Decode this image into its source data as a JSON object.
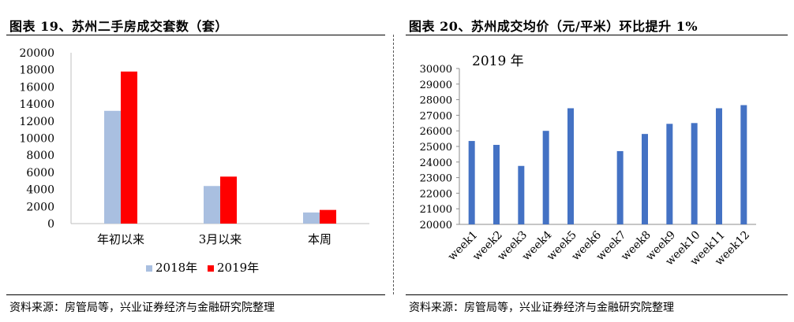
{
  "left_chart": {
    "title": "图表 19、苏州二手房成交套数（套）",
    "source": "资料来源：房管局等，兴业证券经济与金融研究院整理"
  },
  "right_chart": {
    "title": "图表 20、苏州成交均价（元/平米）环比提升 1%",
    "source": "资料来源：房管局等，兴业证券经济与金融研究院整理"
  },
  "chart_data": [
    {
      "type": "bar",
      "title": "图表 19、苏州二手房成交套数（套）",
      "categories": [
        "年初以来",
        "3月以来",
        "本周"
      ],
      "series": [
        {
          "name": "2018年",
          "color": "#a9bfe0",
          "values": [
            13200,
            4400,
            1300
          ]
        },
        {
          "name": "2019年",
          "color": "#ff0000",
          "values": [
            17800,
            5500,
            1600
          ]
        }
      ],
      "yticks": [
        "0",
        "2000",
        "4000",
        "6000",
        "8000",
        "10000",
        "12000",
        "14000",
        "16000",
        "18000",
        "20000"
      ],
      "ylim": [
        0,
        20000
      ],
      "grid": false,
      "legend": "bottom"
    },
    {
      "type": "bar",
      "title": "图表 20、苏州成交均价（元/平米）环比提升 1%",
      "annotation": "2019 年",
      "categories": [
        "week1",
        "week2",
        "week3",
        "week4",
        "week5",
        "week6",
        "week7",
        "week8",
        "week9",
        "week10",
        "week11",
        "week12"
      ],
      "series": [
        {
          "color": "#4472c4",
          "values": [
            25350,
            25100,
            23750,
            26000,
            27450,
            null,
            24700,
            25800,
            26450,
            26500,
            27450,
            27650
          ]
        }
      ],
      "yticks": [
        "20000",
        "21000",
        "22000",
        "23000",
        "24000",
        "25000",
        "26000",
        "27000",
        "28000",
        "29000",
        "30000"
      ],
      "ylim": [
        20000,
        30000
      ],
      "grid": false,
      "legend": "none"
    }
  ]
}
